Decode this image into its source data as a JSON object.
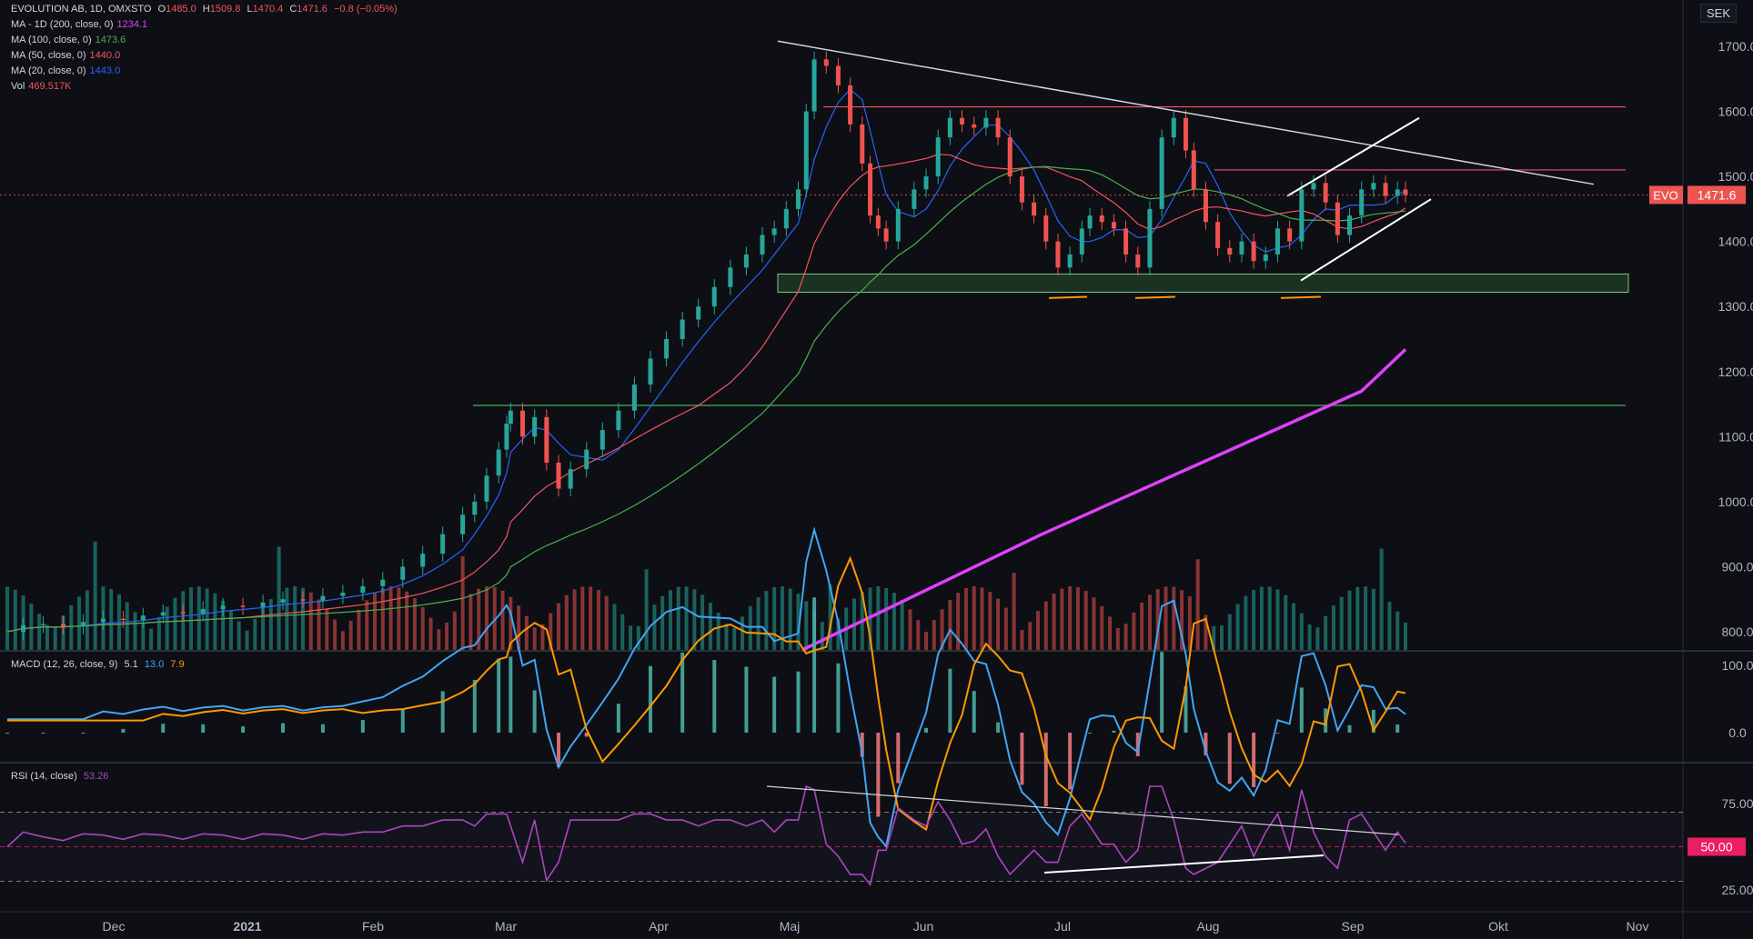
{
  "header": {
    "symbol": "EVOLUTION AB, 1D, OMXSTO",
    "o_label": "O",
    "o_val": "1485.0",
    "h_label": "H",
    "h_val": "1509.8",
    "l_label": "L",
    "l_val": "1470.4",
    "c_label": "C",
    "c_val": "1471.6",
    "change": "−0.8 (−0.05%)"
  },
  "indicators": [
    {
      "label": "MA - 1D (200, close, 0)",
      "value": "1234.1",
      "color": "#e040fb"
    },
    {
      "label": "MA (100, close, 0)",
      "value": "1473.6",
      "color": "#4caf50"
    },
    {
      "label": "MA (50, close, 0)",
      "value": "1440.0",
      "color": "#f7525f"
    },
    {
      "label": "MA (20, close, 0)",
      "value": "1443.0",
      "color": "#2962ff"
    },
    {
      "label": "Vol",
      "value": "469.517K",
      "color": "#f7525f"
    }
  ],
  "currency": "SEK",
  "price_tag": {
    "symbol": "EVO",
    "value": "1471.6"
  },
  "macd": {
    "label": "MACD (12, 26, close, 9)",
    "v1": "5.1",
    "v2": "13.0",
    "v3": "7.9"
  },
  "rsi": {
    "label": "RSI (14, close)",
    "value": "53.26"
  },
  "rsi_tag": "50.00",
  "chart_data": {
    "type": "candlestick",
    "title": "EVOLUTION AB, 1D, OMXSTO",
    "currency": "SEK",
    "price_axis": {
      "ticks": [
        1700,
        1600,
        1500,
        1400,
        1300,
        1200,
        1100,
        1000,
        900,
        800
      ],
      "labels": [
        "1700.0",
        "1600.0",
        "1500.0",
        "1400.0",
        "1300.0",
        "1200.0",
        "1100.0",
        "1000.0",
        "900.0",
        "800.0"
      ],
      "range": [
        780,
        1730
      ]
    },
    "macd_axis": {
      "ticks": [
        100,
        0
      ],
      "labels": [
        "100.0",
        "0.0"
      ]
    },
    "rsi_axis": {
      "ticks": [
        75,
        25
      ],
      "labels": [
        "75.00",
        "25.00"
      ],
      "levels": [
        70,
        50,
        30
      ]
    },
    "time_axis": [
      "Dec",
      "2021",
      "Feb",
      "Mar",
      "Apr",
      "Maj",
      "Jun",
      "Jul",
      "Aug",
      "Sep",
      "Okt",
      "Nov"
    ],
    "close_path": [
      [
        800,
        1
      ],
      [
        810,
        5
      ],
      [
        812,
        10
      ],
      [
        808,
        15
      ],
      [
        815,
        20
      ],
      [
        820,
        25
      ],
      [
        818,
        30
      ],
      [
        825,
        35
      ],
      [
        830,
        40
      ],
      [
        828,
        45
      ],
      [
        835,
        50
      ],
      [
        840,
        55
      ],
      [
        838,
        60
      ],
      [
        845,
        65
      ],
      [
        850,
        70
      ],
      [
        848,
        75
      ],
      [
        855,
        80
      ],
      [
        860,
        85
      ],
      [
        870,
        90
      ],
      [
        880,
        95
      ],
      [
        900,
        100
      ],
      [
        920,
        105
      ],
      [
        950,
        110
      ],
      [
        980,
        115
      ],
      [
        1000,
        118
      ],
      [
        1040,
        121
      ],
      [
        1080,
        124
      ],
      [
        1120,
        126
      ],
      [
        1140,
        127
      ],
      [
        1100,
        130
      ],
      [
        1130,
        133
      ],
      [
        1060,
        136
      ],
      [
        1020,
        139
      ],
      [
        1050,
        142
      ],
      [
        1080,
        146
      ],
      [
        1110,
        150
      ],
      [
        1140,
        154
      ],
      [
        1180,
        158
      ],
      [
        1220,
        162
      ],
      [
        1250,
        166
      ],
      [
        1280,
        170
      ],
      [
        1300,
        174
      ],
      [
        1330,
        178
      ],
      [
        1360,
        182
      ],
      [
        1380,
        186
      ],
      [
        1410,
        190
      ],
      [
        1420,
        193
      ],
      [
        1450,
        196
      ],
      [
        1480,
        199
      ],
      [
        1600,
        201
      ],
      [
        1680,
        203
      ],
      [
        1670,
        206
      ],
      [
        1640,
        209
      ],
      [
        1580,
        212
      ],
      [
        1520,
        215
      ],
      [
        1440,
        217
      ],
      [
        1420,
        219
      ],
      [
        1400,
        221
      ],
      [
        1450,
        224
      ],
      [
        1480,
        228
      ],
      [
        1500,
        231
      ],
      [
        1560,
        234
      ],
      [
        1590,
        237
      ],
      [
        1580,
        240
      ],
      [
        1575,
        243
      ],
      [
        1590,
        246
      ],
      [
        1560,
        249
      ],
      [
        1500,
        252
      ],
      [
        1460,
        255
      ],
      [
        1440,
        258
      ],
      [
        1400,
        261
      ],
      [
        1360,
        264
      ],
      [
        1380,
        267
      ],
      [
        1420,
        270
      ],
      [
        1440,
        272
      ],
      [
        1430,
        275
      ],
      [
        1420,
        278
      ],
      [
        1380,
        281
      ],
      [
        1360,
        284
      ],
      [
        1450,
        287
      ],
      [
        1560,
        290
      ],
      [
        1590,
        293
      ],
      [
        1540,
        296
      ],
      [
        1480,
        298
      ],
      [
        1430,
        301
      ],
      [
        1390,
        304
      ],
      [
        1380,
        307
      ],
      [
        1400,
        310
      ],
      [
        1370,
        313
      ],
      [
        1380,
        316
      ],
      [
        1420,
        319
      ],
      [
        1400,
        322
      ],
      [
        1480,
        325
      ],
      [
        1490,
        328
      ],
      [
        1460,
        331
      ],
      [
        1410,
        334
      ],
      [
        1440,
        337
      ],
      [
        1480,
        340
      ],
      [
        1490,
        343
      ],
      [
        1470,
        346
      ],
      [
        1480,
        349
      ],
      [
        1471.6,
        351
      ]
    ],
    "moving_averages": [
      {
        "name": "MA 200",
        "value": 1234.1,
        "color": "#e040fb"
      },
      {
        "name": "MA 100",
        "value": 1473.6,
        "color": "#4caf50"
      },
      {
        "name": "MA 50",
        "value": 1440.0,
        "color": "#f7525f"
      },
      {
        "name": "MA 20",
        "value": 1443.0,
        "color": "#2962ff"
      }
    ],
    "horizontal_levels": [
      {
        "price": 1607,
        "color": "#f7525f"
      },
      {
        "price": 1510,
        "color": "#f7525f"
      },
      {
        "price": 1148,
        "color": "#4caf50"
      }
    ],
    "support_zone": [
      1322,
      1350
    ],
    "last_price": 1471.6
  }
}
